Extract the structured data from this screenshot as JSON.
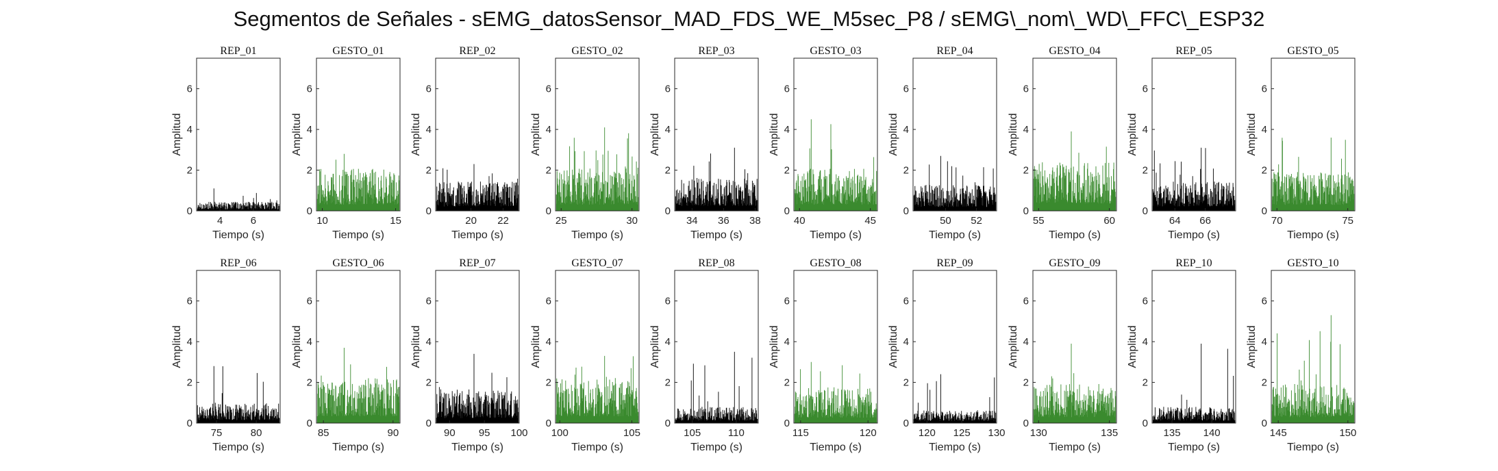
{
  "title": "Segmentos de Señales - sEMG_datosSensor_MAD_FDS_WE_M5sec_P8 / sEMG\\_nom\\_WD\\_FFC\\_ESP32",
  "colors": {
    "rep": "#000000",
    "gesto": "#3a8a2e"
  },
  "chart_data": [
    {
      "type": "bar",
      "title": "REP_01",
      "kind": "rep",
      "xlabel": "Tiempo (s)",
      "ylabel": "Amplitud",
      "xlim": [
        2.6,
        7.6
      ],
      "ylim": [
        0,
        7.5
      ],
      "xticks": [
        4,
        6
      ],
      "yticks": [
        0,
        2,
        4,
        6
      ],
      "baseline": 0.28,
      "peak": 1.1
    },
    {
      "type": "bar",
      "title": "GESTO_01",
      "kind": "gesto",
      "xlabel": "Tiempo (s)",
      "ylabel": "Amplitud",
      "xlim": [
        9.6,
        15.3
      ],
      "ylim": [
        0,
        7.5
      ],
      "xticks": [
        10,
        15
      ],
      "yticks": [
        0,
        2,
        4,
        6
      ],
      "baseline": 1.3,
      "peak": 2.8
    },
    {
      "type": "bar",
      "title": "REP_02",
      "kind": "rep",
      "xlabel": "Tiempo (s)",
      "ylabel": "Amplitud",
      "xlim": [
        17.8,
        23.0
      ],
      "ylim": [
        0,
        7.5
      ],
      "xticks": [
        20,
        22
      ],
      "yticks": [
        0,
        2,
        4,
        6
      ],
      "baseline": 0.9,
      "peak": 2.3
    },
    {
      "type": "bar",
      "title": "GESTO_02",
      "kind": "gesto",
      "xlabel": "Tiempo (s)",
      "ylabel": "Amplitud",
      "xlim": [
        24.6,
        30.5
      ],
      "ylim": [
        0,
        7.5
      ],
      "xticks": [
        25,
        30
      ],
      "yticks": [
        0,
        2,
        4,
        6
      ],
      "baseline": 1.3,
      "peak": 4.1
    },
    {
      "type": "bar",
      "title": "REP_03",
      "kind": "rep",
      "xlabel": "Tiempo (s)",
      "ylabel": "Amplitud",
      "xlim": [
        32.9,
        38.2
      ],
      "ylim": [
        0,
        7.5
      ],
      "xticks": [
        34,
        36,
        38
      ],
      "yticks": [
        0,
        2,
        4,
        6
      ],
      "baseline": 1.0,
      "peak": 3.1
    },
    {
      "type": "bar",
      "title": "GESTO_03",
      "kind": "gesto",
      "xlabel": "Tiempo (s)",
      "ylabel": "Amplitud",
      "xlim": [
        39.6,
        45.5
      ],
      "ylim": [
        0,
        7.5
      ],
      "xticks": [
        40,
        45
      ],
      "yticks": [
        0,
        2,
        4,
        6
      ],
      "baseline": 1.3,
      "peak": 4.5
    },
    {
      "type": "bar",
      "title": "REP_04",
      "kind": "rep",
      "xlabel": "Tiempo (s)",
      "ylabel": "Amplitud",
      "xlim": [
        47.9,
        53.3
      ],
      "ylim": [
        0,
        7.5
      ],
      "xticks": [
        50,
        52
      ],
      "yticks": [
        0,
        2,
        4,
        6
      ],
      "baseline": 0.8,
      "peak": 2.7
    },
    {
      "type": "bar",
      "title": "GESTO_04",
      "kind": "gesto",
      "xlabel": "Tiempo (s)",
      "ylabel": "Amplitud",
      "xlim": [
        54.6,
        60.5
      ],
      "ylim": [
        0,
        7.5
      ],
      "xticks": [
        55,
        60
      ],
      "yticks": [
        0,
        2,
        4,
        6
      ],
      "baseline": 1.5,
      "peak": 3.9
    },
    {
      "type": "bar",
      "title": "REP_05",
      "kind": "rep",
      "xlabel": "Tiempo (s)",
      "ylabel": "Amplitud",
      "xlim": [
        62.5,
        68.0
      ],
      "ylim": [
        0,
        7.5
      ],
      "xticks": [
        64,
        66
      ],
      "yticks": [
        0,
        2,
        4,
        6
      ],
      "baseline": 0.9,
      "peak": 3.1
    },
    {
      "type": "bar",
      "title": "GESTO_05",
      "kind": "gesto",
      "xlabel": "Tiempo (s)",
      "ylabel": "Amplitud",
      "xlim": [
        69.6,
        75.5
      ],
      "ylim": [
        0,
        7.5
      ],
      "xticks": [
        70,
        75
      ],
      "yticks": [
        0,
        2,
        4,
        6
      ],
      "baseline": 1.2,
      "peak": 3.6
    },
    {
      "type": "bar",
      "title": "REP_06",
      "kind": "rep",
      "xlabel": "Tiempo (s)",
      "ylabel": "Amplitud",
      "xlim": [
        72.5,
        83.0
      ],
      "ylim": [
        0,
        7.5
      ],
      "xticks": [
        75,
        80
      ],
      "yticks": [
        0,
        2,
        4,
        6
      ],
      "baseline": 0.6,
      "peak": 2.8
    },
    {
      "type": "bar",
      "title": "GESTO_06",
      "kind": "gesto",
      "xlabel": "Tiempo (s)",
      "ylabel": "Amplitud",
      "xlim": [
        84.5,
        90.5
      ],
      "ylim": [
        0,
        7.5
      ],
      "xticks": [
        85,
        90
      ],
      "yticks": [
        0,
        2,
        4,
        6
      ],
      "baseline": 1.4,
      "peak": 3.7
    },
    {
      "type": "bar",
      "title": "REP_07",
      "kind": "rep",
      "xlabel": "Tiempo (s)",
      "ylabel": "Amplitud",
      "xlim": [
        88.0,
        100.0
      ],
      "ylim": [
        0,
        7.5
      ],
      "xticks": [
        90,
        95,
        100
      ],
      "yticks": [
        0,
        2,
        4,
        6
      ],
      "baseline": 1.0,
      "peak": 3.4
    },
    {
      "type": "bar",
      "title": "GESTO_07",
      "kind": "gesto",
      "xlabel": "Tiempo (s)",
      "ylabel": "Amplitud",
      "xlim": [
        99.7,
        105.5
      ],
      "ylim": [
        0,
        7.5
      ],
      "xticks": [
        100,
        105
      ],
      "yticks": [
        0,
        2,
        4,
        6
      ],
      "baseline": 1.4,
      "peak": 3.3
    },
    {
      "type": "bar",
      "title": "REP_08",
      "kind": "rep",
      "xlabel": "Tiempo (s)",
      "ylabel": "Amplitud",
      "xlim": [
        103.0,
        112.5
      ],
      "ylim": [
        0,
        7.5
      ],
      "xticks": [
        105,
        110
      ],
      "yticks": [
        0,
        2,
        4,
        6
      ],
      "baseline": 0.5,
      "peak": 3.5
    },
    {
      "type": "bar",
      "title": "GESTO_08",
      "kind": "gesto",
      "xlabel": "Tiempo (s)",
      "ylabel": "Amplitud",
      "xlim": [
        114.5,
        120.7
      ],
      "ylim": [
        0,
        7.5
      ],
      "xticks": [
        115,
        120
      ],
      "yticks": [
        0,
        2,
        4,
        6
      ],
      "baseline": 1.1,
      "peak": 3.0
    },
    {
      "type": "bar",
      "title": "REP_09",
      "kind": "rep",
      "xlabel": "Tiempo (s)",
      "ylabel": "Amplitud",
      "xlim": [
        118.0,
        130.0
      ],
      "ylim": [
        0,
        7.5
      ],
      "xticks": [
        120,
        125,
        130
      ],
      "yticks": [
        0,
        2,
        4,
        6
      ],
      "baseline": 0.4,
      "peak": 2.4
    },
    {
      "type": "bar",
      "title": "GESTO_09",
      "kind": "gesto",
      "xlabel": "Tiempo (s)",
      "ylabel": "Amplitud",
      "xlim": [
        129.6,
        135.5
      ],
      "ylim": [
        0,
        7.5
      ],
      "xticks": [
        130,
        135
      ],
      "yticks": [
        0,
        2,
        4,
        6
      ],
      "baseline": 1.2,
      "peak": 3.9
    },
    {
      "type": "bar",
      "title": "REP_10",
      "kind": "rep",
      "xlabel": "Tiempo (s)",
      "ylabel": "Amplitud",
      "xlim": [
        132.5,
        143.0
      ],
      "ylim": [
        0,
        7.5
      ],
      "xticks": [
        135,
        140
      ],
      "yticks": [
        0,
        2,
        4,
        6
      ],
      "baseline": 0.5,
      "peak": 3.9
    },
    {
      "type": "bar",
      "title": "GESTO_10",
      "kind": "gesto",
      "xlabel": "Tiempo (s)",
      "ylabel": "Amplitud",
      "xlim": [
        144.5,
        150.5
      ],
      "ylim": [
        0,
        7.5
      ],
      "xticks": [
        145,
        150
      ],
      "yticks": [
        0,
        2,
        4,
        6
      ],
      "baseline": 1.2,
      "peak": 5.3
    }
  ]
}
